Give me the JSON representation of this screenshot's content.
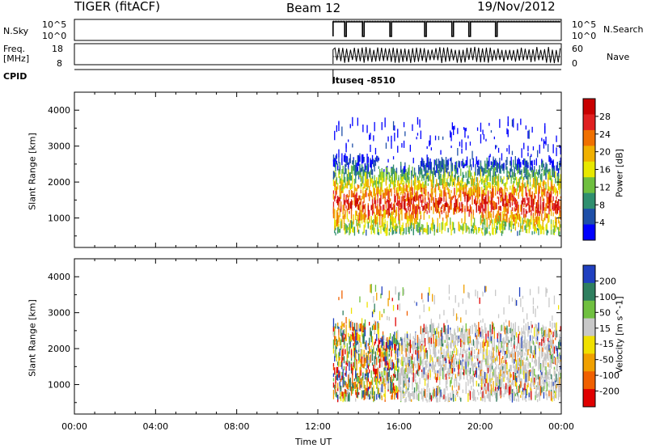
{
  "header": {
    "radar": "TIGER (fitACF)",
    "beam": "Beam 12",
    "date": "19/Nov/2012"
  },
  "strip_left_labels": {
    "nsky": "N.Sky",
    "freq": "Freq.",
    "freq_unit": "[MHz]",
    "cpid": "CPID"
  },
  "strip_right_labels": {
    "nsearch": "N.Search",
    "nave": "Nave"
  },
  "strip_ticks": {
    "nsky_hi": "10^5",
    "nsky_lo": "10^0",
    "freq_hi": "18",
    "freq_lo": "8",
    "nsearch_hi": "10^5",
    "nsearch_lo": "10^0",
    "nave_hi": "60",
    "nave_lo": "0"
  },
  "cpid_annotation": "ltuseq -8510",
  "time_axis": {
    "label": "Time UT",
    "ticks": [
      "00:00",
      "04:00",
      "08:00",
      "12:00",
      "16:00",
      "20:00",
      "00:00"
    ],
    "range_hours": [
      0,
      24
    ]
  },
  "colors": {
    "power": [
      "#0000ff",
      "#1e4fa8",
      "#2f8f6f",
      "#6fbf3f",
      "#e8e800",
      "#f0b000",
      "#f07000",
      "#e02020",
      "#c80000"
    ],
    "velocity": [
      "#2040c0",
      "#2f7f5f",
      "#70c040",
      "#c8c8c8",
      "#f0e000",
      "#f0a000",
      "#f06000",
      "#e00000"
    ]
  },
  "chart_data": [
    {
      "type": "heatmap",
      "ylabel": "Slant Range [km]",
      "ylim": [
        180,
        4500
      ],
      "yticks": [
        1000,
        2000,
        3000,
        4000
      ],
      "xlim": [
        0,
        24
      ],
      "colorbar_label": "Power [dB]",
      "colorbar_ticks": [
        "4",
        "8",
        "12",
        "16",
        "20",
        "24",
        "28"
      ],
      "colorbar_range": [
        0,
        32
      ],
      "data_start_hour": 12.75,
      "main_band_km": [
        500,
        2600
      ]
    },
    {
      "type": "heatmap",
      "ylabel": "Slant Range [km]",
      "ylim": [
        180,
        4500
      ],
      "yticks": [
        1000,
        2000,
        3000,
        4000
      ],
      "xlim": [
        0,
        24
      ],
      "colorbar_label": "Velocity [m s^-1]",
      "colorbar_ticks": [
        "200",
        "100",
        "50",
        "15",
        "-15",
        "-50",
        "-100",
        "-200"
      ],
      "data_start_hour": 12.75,
      "main_band_km": [
        500,
        2600
      ]
    }
  ]
}
